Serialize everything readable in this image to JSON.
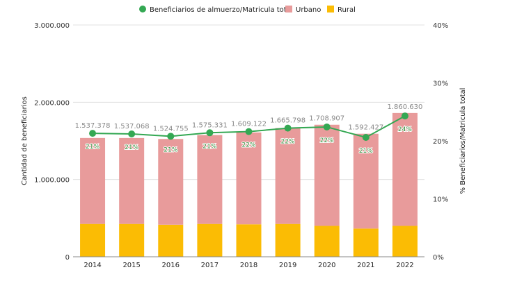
{
  "chart_data": {
    "type": "bar",
    "stacked": true,
    "categories": [
      "2014",
      "2015",
      "2016",
      "2017",
      "2018",
      "2019",
      "2020",
      "2021",
      "2022"
    ],
    "series": [
      {
        "name": "Urbano",
        "color": "#e89b9b",
        "values": [
          1112378,
          1112068,
          1109755,
          1150331,
          1189122,
          1240798,
          1308907,
          1227427,
          1460630
        ]
      },
      {
        "name": "Rural",
        "color": "#fbbc04",
        "values": [
          425000,
          425000,
          415000,
          425000,
          420000,
          425000,
          400000,
          365000,
          400000
        ]
      }
    ],
    "totals": [
      1537378,
      1537068,
      1524755,
      1575331,
      1609122,
      1665798,
      1708907,
      1592427,
      1860630
    ],
    "total_labels": [
      "1.537.378",
      "1.537.068",
      "1.524.755",
      "1.575.331",
      "1.609.122",
      "1.665.798",
      "1.708.907",
      "1.592.427",
      "1.860.630"
    ],
    "line": {
      "name": "Beneficiarios de almuerzo/Matricula total",
      "color": "#34a853",
      "values": [
        21.3,
        21.2,
        20.8,
        21.4,
        21.6,
        22.2,
        22.4,
        20.6,
        24.3
      ],
      "labels": [
        "21%",
        "21%",
        "21%",
        "21%",
        "22%",
        "22%",
        "22%",
        "21%",
        "24%"
      ]
    },
    "ylabel": "Cantidad de beneficiarios",
    "y2label": "% Beneficiarios/Matricula total",
    "ylim": [
      0,
      3000000
    ],
    "y2lim": [
      0,
      40
    ],
    "yticks": [
      "0",
      "1.000.000",
      "2.000.000",
      "3.000.000"
    ],
    "y2ticks": [
      "0%",
      "10%",
      "20%",
      "30%",
      "40%"
    ],
    "grid": true,
    "legend": "top"
  }
}
